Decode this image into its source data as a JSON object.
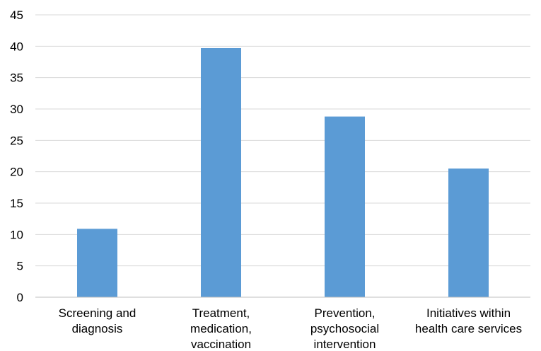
{
  "chart_data": {
    "type": "bar",
    "title": "",
    "xlabel": "",
    "ylabel": "",
    "categories": [
      [
        "Screening and",
        "diagnosis"
      ],
      [
        "Treatment,",
        "medication,",
        "vaccination"
      ],
      [
        "Prevention,",
        "psychosocial",
        "intervention"
      ],
      [
        "Initiatives within",
        "health care services"
      ]
    ],
    "values": [
      10.9,
      39.7,
      28.8,
      20.5
    ],
    "ylim": [
      0,
      45
    ],
    "yticks": [
      0,
      5,
      10,
      15,
      20,
      25,
      30,
      35,
      40,
      45
    ],
    "grid": true,
    "legend": "none",
    "colors": {
      "bar": "#5B9BD5",
      "grid": "#D9D9D9",
      "axis": "#BFBFBF",
      "text": "#000000"
    }
  }
}
